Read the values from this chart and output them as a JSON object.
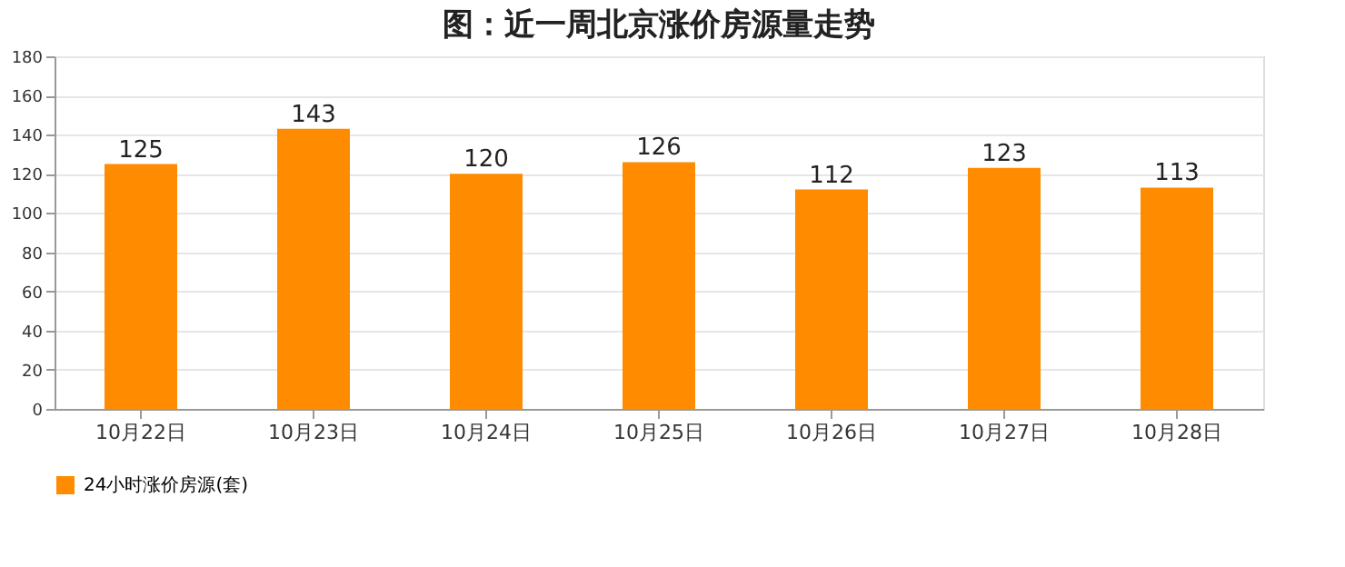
{
  "chart_data": {
    "type": "bar",
    "title": "图：近一周北京涨价房源量走势",
    "categories": [
      "10月22日",
      "10月23日",
      "10月24日",
      "10月25日",
      "10月26日",
      "10月27日",
      "10月28日"
    ],
    "series": [
      {
        "name": "24小时涨价房源(套)",
        "color": "#ff8c00",
        "values": [
          125,
          143,
          120,
          126,
          112,
          123,
          113
        ]
      }
    ],
    "ylim": [
      0,
      180
    ],
    "yticks": [
      0,
      20,
      40,
      60,
      80,
      100,
      120,
      140,
      160,
      180
    ],
    "grid": "y",
    "legend": "bottom",
    "data_labels": true
  }
}
